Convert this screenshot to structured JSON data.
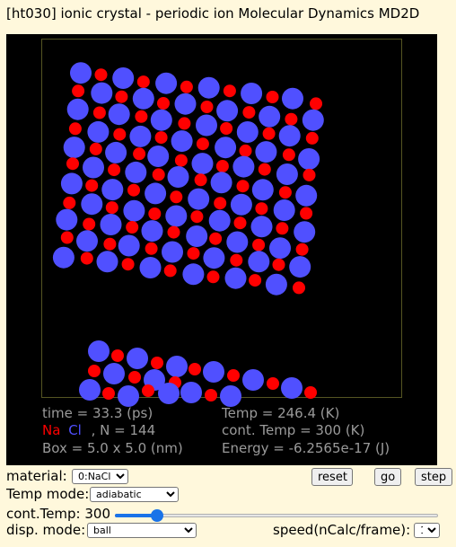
{
  "title": "[ht030] ionic crystal - periodic ion Molecular Dynamics MD2D",
  "sim": {
    "time": "time = 33.3 (ps)",
    "temp": "Temp = 246.4 (K)",
    "legend_na": "Na",
    "legend_cl": "Cl",
    "legend_count": ",  N = 144",
    "cont_temp": "cont. Temp = 300 (K)",
    "box": "Box = 5.0 x 5.0 (nm)",
    "energy": "Energy = -6.2565e-17 (J)"
  },
  "colors": {
    "na": "#ff0000",
    "cl": "#5050ff",
    "wall": "#555522",
    "info_text": "#9a9a9a",
    "background": "#fff8dc"
  },
  "controls": {
    "material_label": "material:",
    "material_value": "0:NaCl",
    "reset_label": "reset",
    "go_label": "go",
    "step_label": "step",
    "temp_mode_label": "Temp mode:",
    "temp_mode_value": "adiabatic",
    "cont_temp_label": "cont.Temp: 300",
    "cont_temp_value": 300,
    "cont_temp_fraction": 0.13,
    "disp_mode_label": "disp. mode:",
    "disp_mode_value": "ball",
    "speed_label": "speed(nCalc/frame):",
    "speed_value": "1"
  }
}
